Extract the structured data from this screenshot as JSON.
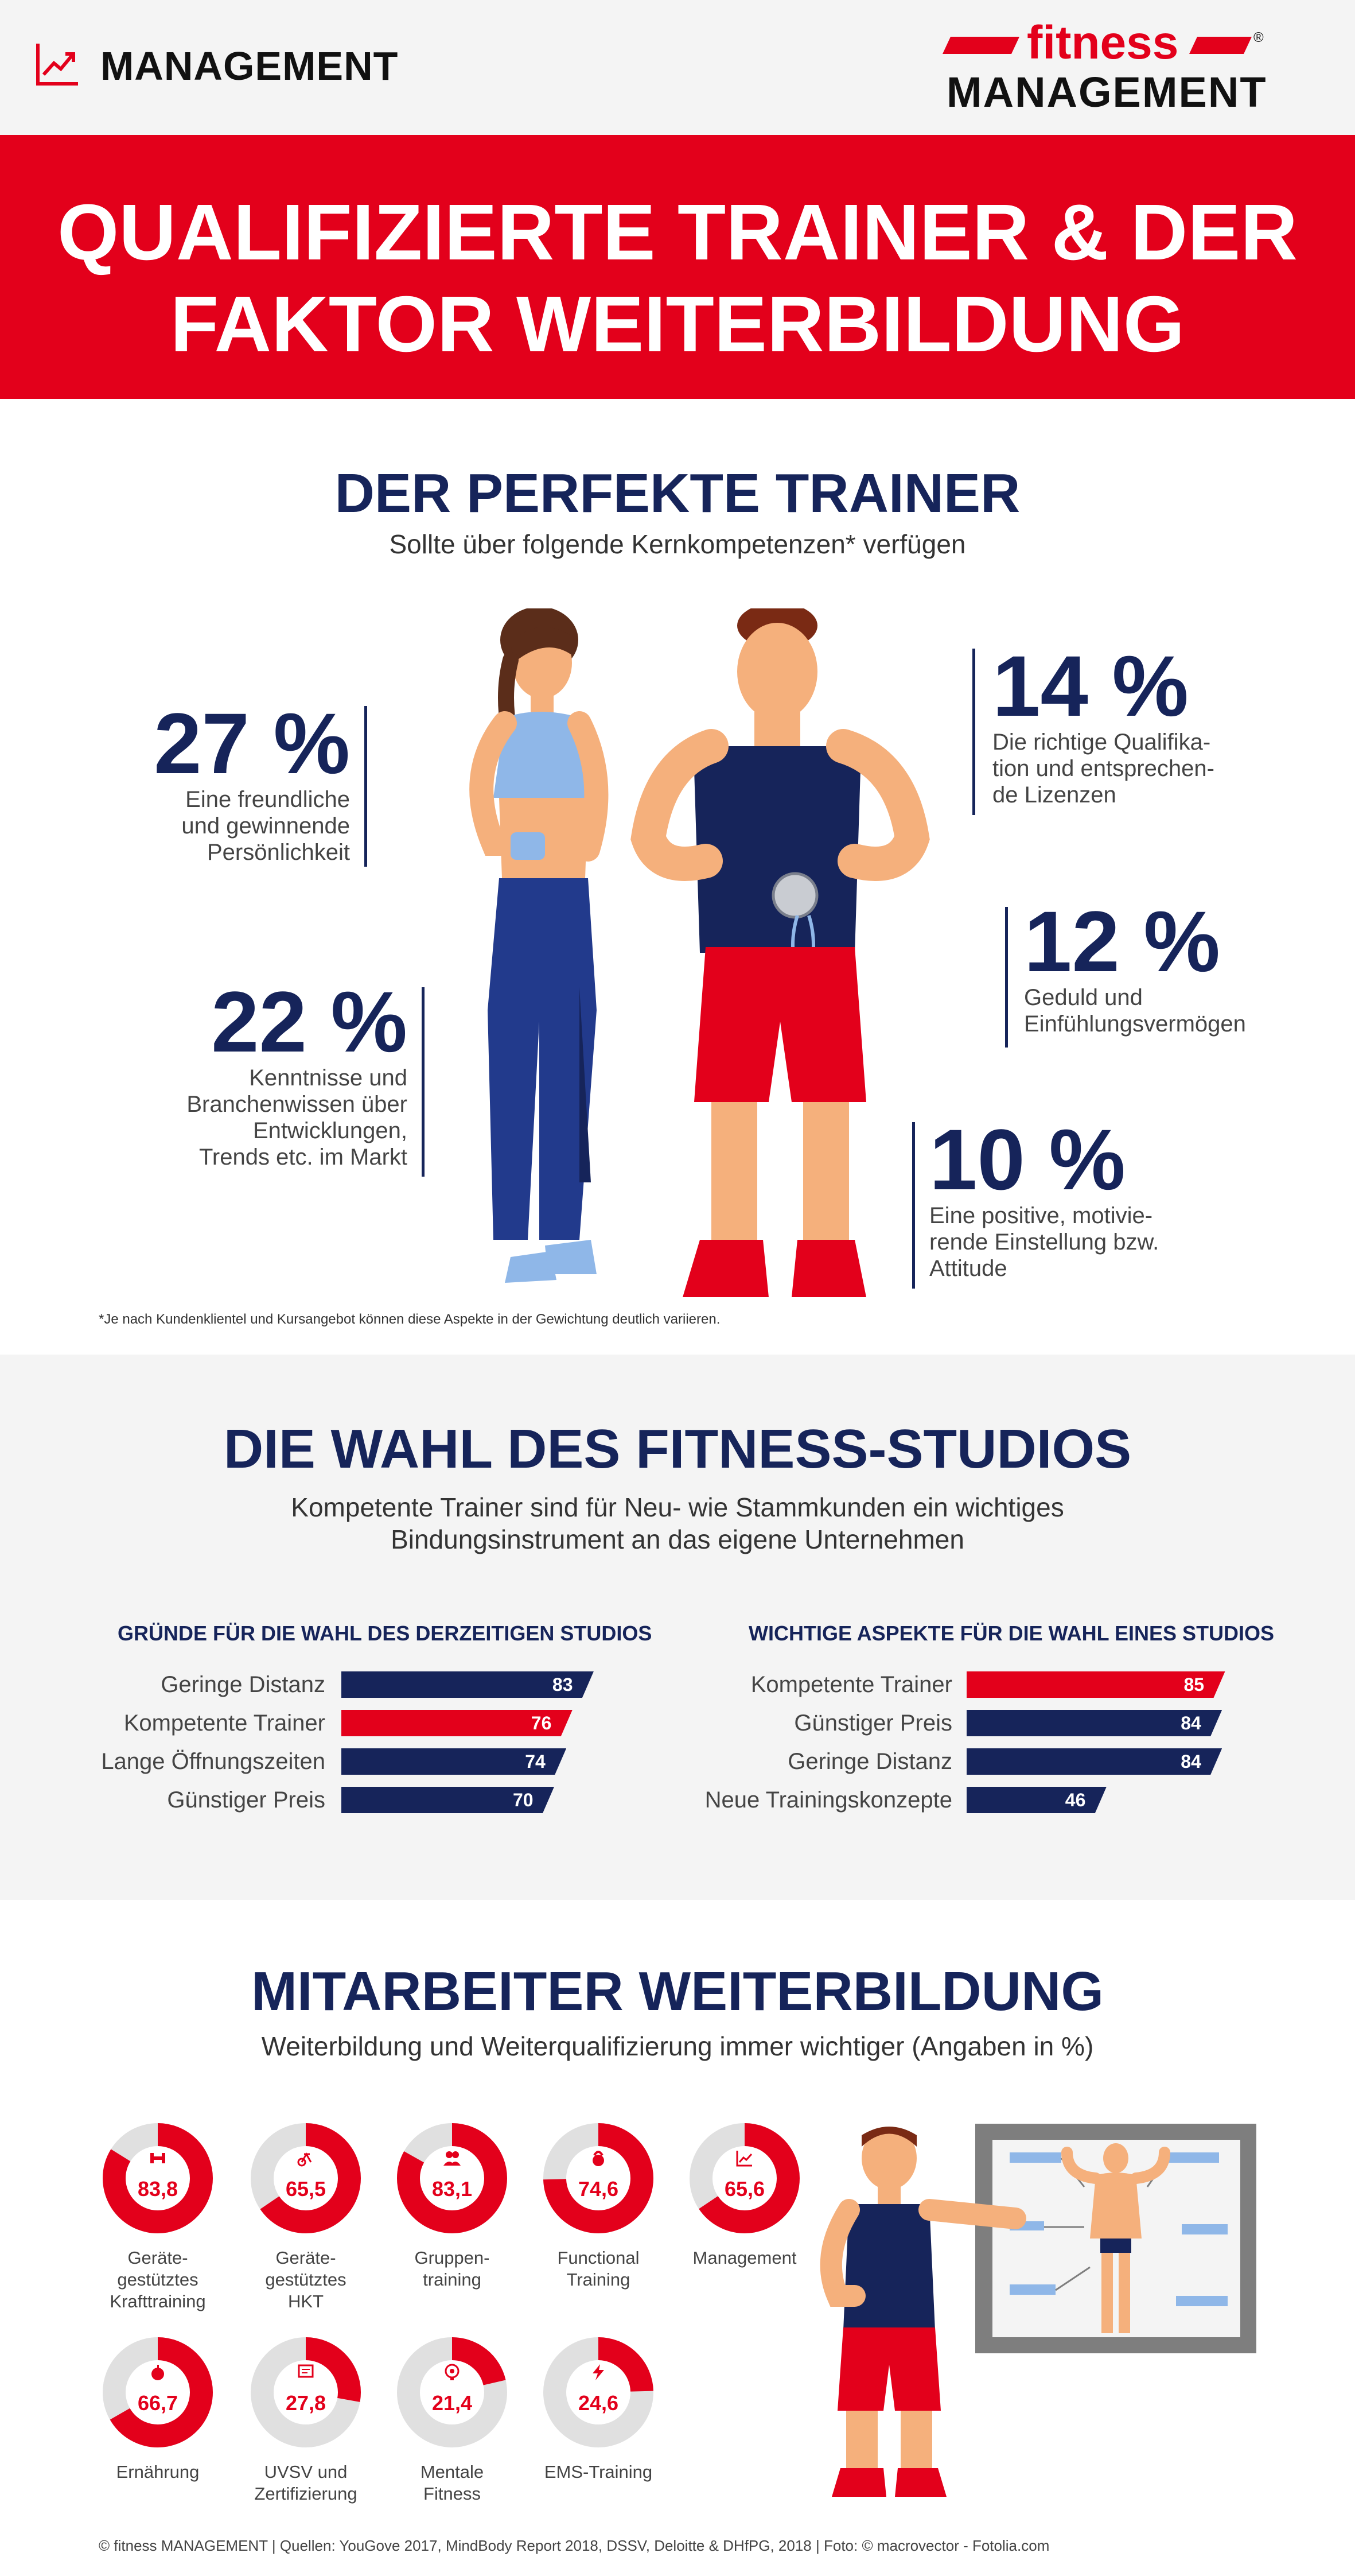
{
  "header": {
    "section_label": "MANAGEMENT",
    "logo_top": "fitness",
    "logo_bottom": "MANAGEMENT",
    "logo_reg": "®"
  },
  "hero": {
    "title": "QUALIFIZIERTE TRAINER & DER\nFAKTOR WEITERBILDUNG"
  },
  "trainer": {
    "title": "DER PERFEKTE TRAINER",
    "subtitle": "Sollte über folgende Kernkompetenzen* verfügen",
    "stats": [
      {
        "value": "27 %",
        "text": "Eine freundliche\nund gewinnende\nPersönlichkeit"
      },
      {
        "value": "22 %",
        "text": "Kenntnisse und\nBranchenwissen über\nEntwicklungen,\nTrends etc. im Markt"
      },
      {
        "value": "14 %",
        "text": "Die richtige Qualifika-\ntion und entsprechen-\nde Lizenzen"
      },
      {
        "value": "12 %",
        "text": "Geduld und\nEinfühlungsvermögen"
      },
      {
        "value": "10 %",
        "text": "Eine positive, motivie-\nrende Einstellung bzw.\nAttitude"
      }
    ],
    "footnote": "*Je nach Kundenklientel und Kursangebot können diese Aspekte in der Gewichtung deutlich variieren."
  },
  "studio": {
    "title": "DIE WAHL DES FITNESS-STUDIOS",
    "subtitle": "Kompetente Trainer sind für Neu- wie Stammkunden ein wichtiges\nBindungsinstrument an das eigene Unternehmen"
  },
  "weiterbildung": {
    "title": "MITARBEITER WEITERBILDUNG",
    "subtitle": "Weiterbildung und Weiterqualifizierung immer wichtiger (Angaben in %)"
  },
  "colors": {
    "red": "#e3001b",
    "navy": "#16245a",
    "gray_ring": "#e0e0e0"
  },
  "chart_data": [
    {
      "type": "bar",
      "title": "GRÜNDE FÜR DIE WAHL DES DERZEITIGEN STUDIOS",
      "categories": [
        "Geringe Distanz",
        "Kompetente Trainer",
        "Lange Öffnungszeiten",
        "Günstiger Preis"
      ],
      "values": [
        83,
        76,
        74,
        70
      ],
      "labels": [
        "83",
        "76",
        "74",
        "70"
      ],
      "highlight": [
        false,
        true,
        false,
        false
      ]
    },
    {
      "type": "bar",
      "title": "WICHTIGE ASPEKTE FÜR DIE WAHL EINES STUDIOS",
      "categories": [
        "Kompetente Trainer",
        "Günstiger Preis",
        "Geringe Distanz",
        "Neue Trainingskonzepte"
      ],
      "values": [
        85,
        84,
        84,
        46
      ],
      "labels": [
        "85",
        "84",
        "84",
        "46"
      ],
      "highlight": [
        true,
        false,
        false,
        false
      ]
    },
    {
      "type": "pie",
      "title": "",
      "categories": [
        "Geräte-\ngestütztes\nKrafttraining",
        "Geräte-\ngestütztes\nHKT",
        "Gruppen-\ntraining",
        "Functional\nTraining",
        "Management",
        "Ernährung",
        "UVSV und\nZertifizierung",
        "Mentale\nFitness",
        "EMS-Training"
      ],
      "values": [
        83.8,
        65.5,
        83.1,
        74.6,
        65.6,
        66.7,
        27.8,
        21.4,
        24.6
      ],
      "labels": [
        "83,8",
        "65,5",
        "83,1",
        "74,6",
        "65,6",
        "66,7",
        "27,8",
        "21,4",
        "24,6"
      ],
      "icons": [
        "dumbbell-icon",
        "bike-icon",
        "group-icon",
        "kettlebell-icon",
        "chart-icon",
        "apple-icon",
        "certificate-icon",
        "brain-icon",
        "lightning-icon"
      ]
    }
  ],
  "footer": "© fitness MANAGEMENT    |   Quellen: YouGove 2017, MindBody Report 2018, DSSV, Deloitte & DHfPG, 2018    |   Foto: © macrovector - Fotolia.com"
}
